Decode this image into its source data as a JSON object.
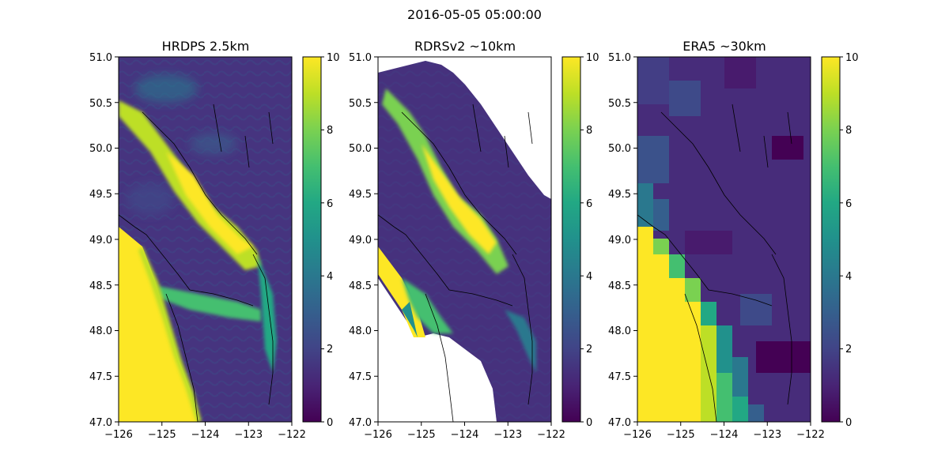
{
  "suptitle": "2016-05-05 05:00:00",
  "chart_data": [
    {
      "type": "heatmap",
      "title": "HRDPS 2.5km",
      "xlim": [
        -126,
        -122
      ],
      "ylim": [
        47.0,
        51.0
      ],
      "xticks": [
        "−126",
        "−125",
        "−124",
        "−123",
        "−122"
      ],
      "yticks": [
        "47.0",
        "47.5",
        "48.0",
        "48.5",
        "49.0",
        "49.5",
        "50.0",
        "50.5",
        "51.0"
      ],
      "colorbar": {
        "min": 0,
        "max": 10,
        "ticks": [
          "0",
          "2",
          "4",
          "6",
          "8",
          "10"
        ],
        "colormap": "viridis"
      },
      "features": [
        "high values (10) over open Pacific ocean west of 124.5W",
        "strait channel values 6-10",
        "land values 0-2"
      ]
    },
    {
      "type": "heatmap",
      "title": "RDRSv2 ~10km",
      "xlim": [
        -126,
        -122
      ],
      "ylim": [
        47.0,
        51.0
      ],
      "xticks": [
        "−126",
        "−125",
        "−124",
        "−123",
        "−122"
      ],
      "yticks": [
        "47.0",
        "47.5",
        "48.0",
        "48.5",
        "49.0",
        "49.5",
        "50.0",
        "50.5",
        "51.0"
      ],
      "colorbar": {
        "min": 0,
        "max": 10,
        "ticks": [
          "0",
          "2",
          "4",
          "6",
          "8",
          "10"
        ],
        "colormap": "viridis"
      },
      "features": [
        "rotated grid with no-data (white) areas",
        "strait values 6-10",
        "land values 0-2"
      ]
    },
    {
      "type": "heatmap",
      "title": "ERA5 ~30km",
      "xlim": [
        -126,
        -122
      ],
      "ylim": [
        47.0,
        51.0
      ],
      "xticks": [
        "−126",
        "−125",
        "−124",
        "−123",
        "−122"
      ],
      "yticks": [
        "47.0",
        "47.5",
        "48.0",
        "48.5",
        "49.0",
        "49.5",
        "50.0",
        "50.5",
        "51.0"
      ],
      "colorbar": {
        "min": 0,
        "max": 10,
        "ticks": [
          "0",
          "2",
          "4",
          "6",
          "8",
          "10"
        ],
        "colormap": "viridis"
      },
      "features": [
        "coarse blocky grid",
        "ocean values 8-10",
        "land values 0-2"
      ]
    }
  ]
}
